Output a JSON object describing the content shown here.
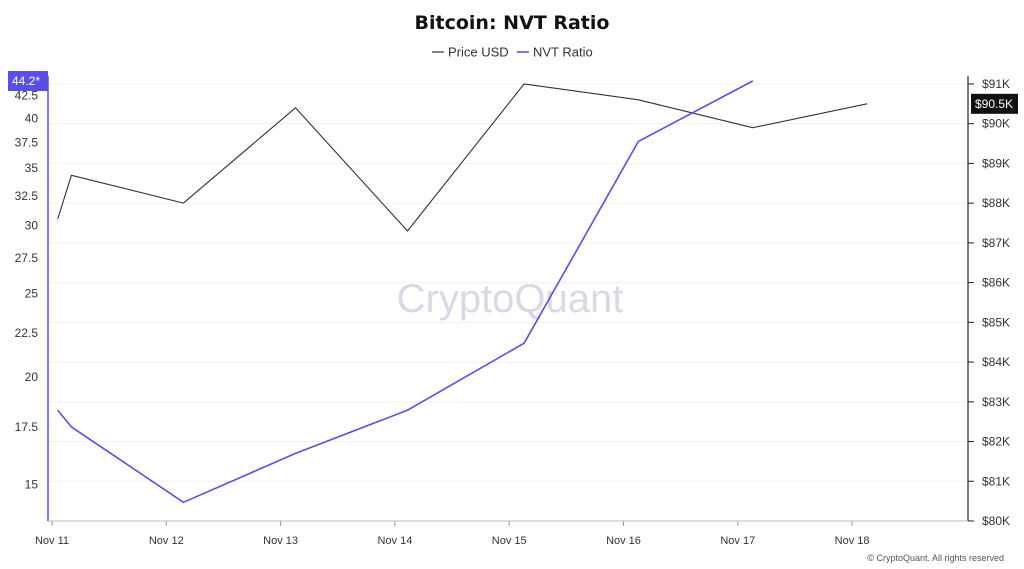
{
  "chart_data": {
    "type": "line",
    "title": "Bitcoin: NVT Ratio",
    "legend": {
      "placement": "top-center",
      "entries": [
        "Price USD",
        "NVT Ratio"
      ]
    },
    "x_tick_labels": [
      "Nov 11",
      "Nov 12",
      "Nov 13",
      "Nov 14",
      "Nov 15",
      "Nov 16",
      "Nov 17",
      "Nov 18"
    ],
    "left_axis": {
      "ticks": [
        "15",
        "17.5",
        "20",
        "22.5",
        "25",
        "27.5",
        "30",
        "32.5",
        "35",
        "37.5",
        "40",
        "42.5"
      ],
      "range": [
        13.6,
        44.8
      ],
      "current_value_badge": "44.2*"
    },
    "right_axis": {
      "ticks": [
        "$80K",
        "$81K",
        "$82K",
        "$83K",
        "$84K",
        "$85K",
        "$86K",
        "$87K",
        "$88K",
        "$89K",
        "$90K",
        "$91K"
      ],
      "range": [
        80000,
        91200
      ],
      "current_value_badge": "$90.5K"
    },
    "series": [
      {
        "name": "Price USD",
        "color": "#333333",
        "axis": "right",
        "x": [
          0.05,
          0.17,
          1.15,
          2.13,
          3.11,
          4.13,
          5.13,
          6.13,
          7.13
        ],
        "values": [
          87600,
          88700,
          88000,
          90400,
          87300,
          91000,
          90600,
          89900,
          90500
        ]
      },
      {
        "name": "NVT Ratio",
        "color": "#5b4ee6",
        "axis": "left",
        "x": [
          0.05,
          0.17,
          1.15,
          2.13,
          3.11,
          4.13,
          5.13,
          6.13
        ],
        "values": [
          18.3,
          17.5,
          14.3,
          16.3,
          18.3,
          21.9,
          37.6,
          44.2
        ]
      }
    ],
    "grid": true,
    "watermark": "CryptoQuant",
    "footer": "© CryptoQuant. All rights reserved"
  }
}
